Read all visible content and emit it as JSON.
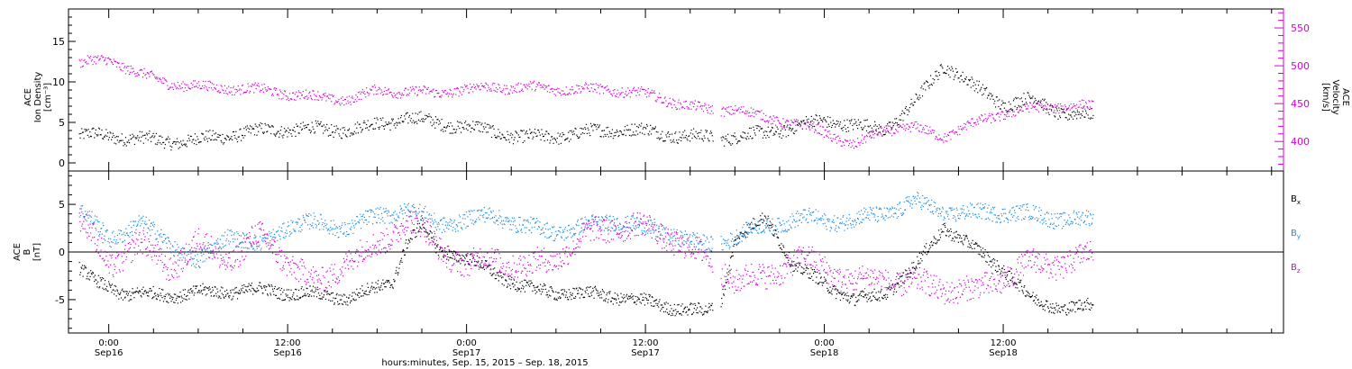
{
  "chart_data": [
    {
      "panel": "top",
      "type": "scatter",
      "x_unit": "hours since 2015-09-15 22:00",
      "ylabel_left": [
        "ACE",
        "Ion Density",
        "[cm⁻³]"
      ],
      "ylabel_right": [
        "ACE",
        "Velocity",
        "[km/s]"
      ],
      "ylim_left": [
        -1,
        19
      ],
      "yticks_left": [
        0,
        5,
        10,
        15
      ],
      "ylim_right": [
        361,
        575
      ],
      "yticks_right": [
        400,
        450,
        500,
        550
      ],
      "series": [
        {
          "name": "",
          "axis": "left",
          "color": "#000000",
          "trend": [
            [
              0,
              3.0
            ],
            [
              6,
              3.0
            ],
            [
              12,
              3.5
            ],
            [
              18,
              4.5
            ],
            [
              22,
              5.5
            ],
            [
              24,
              4.5
            ],
            [
              30,
              3.5
            ],
            [
              36,
              3.7
            ],
            [
              42,
              3.5
            ],
            [
              46,
              3.5
            ],
            [
              48,
              4.0
            ],
            [
              50,
              5.0
            ],
            [
              54,
              4.5
            ],
            [
              56,
              7.5
            ],
            [
              58,
              12.0
            ],
            [
              60,
              9.0
            ],
            [
              62,
              7.0
            ],
            [
              64,
              8.0
            ],
            [
              66,
              6.5
            ],
            [
              68,
              6.0
            ]
          ],
          "scatter_amp": 1.2,
          "gap": [
            42.5,
            43.0
          ]
        },
        {
          "name": "",
          "axis": "right",
          "color": "#d400d4",
          "trend": [
            [
              0,
              500
            ],
            [
              2,
              505
            ],
            [
              4,
              490
            ],
            [
              6,
              480
            ],
            [
              10,
              470
            ],
            [
              14,
              460
            ],
            [
              18,
              458
            ],
            [
              20,
              470
            ],
            [
              22,
              465
            ],
            [
              24,
              460
            ],
            [
              27,
              470
            ],
            [
              30,
              475
            ],
            [
              34,
              468
            ],
            [
              38,
              460
            ],
            [
              42,
              445
            ],
            [
              44,
              445
            ],
            [
              46,
              430
            ],
            [
              48,
              420
            ],
            [
              50,
              410
            ],
            [
              52,
              395
            ],
            [
              54,
              420
            ],
            [
              56,
              420
            ],
            [
              58,
              405
            ],
            [
              60,
              420
            ],
            [
              62,
              435
            ],
            [
              64,
              445
            ],
            [
              66,
              450
            ],
            [
              68,
              448
            ]
          ],
          "scatter_amp": 10,
          "gap": [
            42.5,
            43.0
          ]
        }
      ]
    },
    {
      "panel": "bottom",
      "type": "scatter",
      "x_unit": "hours since 2015-09-15 22:00",
      "ylabel_left": [
        "ACE",
        "B",
        "[nT]"
      ],
      "ylim": [
        -8.5,
        8.5
      ],
      "yticks": [
        -5,
        0,
        5
      ],
      "zero_line": true,
      "series": [
        {
          "name": "Bx",
          "color": "#000000",
          "trend": [
            [
              0,
              -2
            ],
            [
              1,
              -3.5
            ],
            [
              3,
              -4.5
            ],
            [
              8,
              -4.0
            ],
            [
              14,
              -4.5
            ],
            [
              18,
              -4.5
            ],
            [
              21,
              -3.0
            ],
            [
              22,
              1.0
            ],
            [
              23,
              2.5
            ],
            [
              24,
              0.0
            ],
            [
              26,
              -1.0
            ],
            [
              30,
              -3.5
            ],
            [
              34,
              -4.5
            ],
            [
              38,
              -5.5
            ],
            [
              42,
              -6.0
            ],
            [
              43,
              -5.0
            ],
            [
              44,
              1.5
            ],
            [
              46,
              3.5
            ],
            [
              47,
              1.0
            ],
            [
              48,
              -2.0
            ],
            [
              50,
              -3.5
            ],
            [
              52,
              -5.0
            ],
            [
              54,
              -4.0
            ],
            [
              56,
              -1.5
            ],
            [
              58,
              2.5
            ],
            [
              60,
              0.0
            ],
            [
              62,
              -2.0
            ],
            [
              64,
              -5.0
            ],
            [
              66,
              -5.5
            ],
            [
              68,
              -5.5
            ]
          ],
          "scatter_amp": 1.0,
          "gap": [
            42.5,
            43.0
          ]
        },
        {
          "name": "By",
          "color": "#1a8ae6",
          "trend": [
            [
              0,
              4.0
            ],
            [
              2,
              1.0
            ],
            [
              4,
              3.0
            ],
            [
              6,
              1.5
            ],
            [
              8,
              -1.0
            ],
            [
              10,
              2.0
            ],
            [
              12,
              0.0
            ],
            [
              14,
              2.5
            ],
            [
              16,
              3.0
            ],
            [
              18,
              3.0
            ],
            [
              20,
              4.0
            ],
            [
              22,
              4.5
            ],
            [
              24,
              2.5
            ],
            [
              26,
              3.0
            ],
            [
              28,
              4.0
            ],
            [
              30,
              3.0
            ],
            [
              32,
              2.5
            ],
            [
              34,
              2.5
            ],
            [
              36,
              3.0
            ],
            [
              38,
              2.0
            ],
            [
              40,
              2.0
            ],
            [
              42,
              1.0
            ],
            [
              44,
              2.0
            ],
            [
              46,
              2.5
            ],
            [
              48,
              3.0
            ],
            [
              50,
              3.0
            ],
            [
              52,
              3.5
            ],
            [
              54,
              4.5
            ],
            [
              56,
              5.5
            ],
            [
              58,
              4.0
            ],
            [
              60,
              3.5
            ],
            [
              62,
              4.0
            ],
            [
              64,
              4.0
            ],
            [
              66,
              4.0
            ],
            [
              68,
              3.5
            ]
          ],
          "scatter_amp": 1.3,
          "gap": [
            42.5,
            43.0
          ]
        },
        {
          "name": "Bz",
          "color": "#d400d4",
          "trend": [
            [
              0,
              3.0
            ],
            [
              2,
              -2.0
            ],
            [
              4,
              1.0
            ],
            [
              6,
              -1.0
            ],
            [
              8,
              1.5
            ],
            [
              10,
              -1.0
            ],
            [
              12,
              1.0
            ],
            [
              14,
              -1.5
            ],
            [
              16,
              -3.5
            ],
            [
              18,
              0.0
            ],
            [
              20,
              1.0
            ],
            [
              22,
              3.5
            ],
            [
              24,
              0.0
            ],
            [
              26,
              -2.0
            ],
            [
              28,
              -0.5
            ],
            [
              30,
              -1.0
            ],
            [
              32,
              0.0
            ],
            [
              34,
              1.5
            ],
            [
              36,
              2.0
            ],
            [
              38,
              2.0
            ],
            [
              40,
              1.5
            ],
            [
              42,
              0.0
            ],
            [
              43,
              -1.0
            ],
            [
              44,
              -2.5
            ],
            [
              46,
              -3.0
            ],
            [
              48,
              -1.5
            ],
            [
              50,
              -2.0
            ],
            [
              52,
              -3.0
            ],
            [
              54,
              -2.0
            ],
            [
              56,
              -3.0
            ],
            [
              58,
              -4.0
            ],
            [
              60,
              -5.0
            ],
            [
              62,
              -3.0
            ],
            [
              64,
              -1.0
            ],
            [
              66,
              -0.5
            ],
            [
              68,
              0.0
            ]
          ],
          "scatter_amp": 2.0,
          "gap": [
            42.5,
            43.0
          ]
        }
      ]
    }
  ],
  "time_axis": {
    "xlim": [
      -0.7,
      80.8
    ],
    "major_ticks": [
      {
        "t": 2,
        "label": "0:00",
        "date": "Sep16"
      },
      {
        "t": 14,
        "label": "12:00",
        "date": "Sep16"
      },
      {
        "t": 26,
        "label": "0:00",
        "date": "Sep17"
      },
      {
        "t": 38,
        "label": "12:00",
        "date": "Sep17"
      },
      {
        "t": 50,
        "label": "0:00",
        "date": "Sep18"
      },
      {
        "t": 62,
        "label": "12:00",
        "date": "Sep18"
      }
    ],
    "minor_step_hours": 3,
    "caption": "hours:minutes, Sep. 15, 2015 – Sep. 18, 2015"
  },
  "legend": {
    "bx": {
      "base": "B",
      "sub": "x",
      "color": "#000000"
    },
    "by": {
      "base": "B",
      "sub": "y",
      "color": "#1a8ae6"
    },
    "bz": {
      "base": "B",
      "sub": "z",
      "color": "#d400d4"
    }
  },
  "colors": {
    "axis": "#000000",
    "velocity_axis": "#d400d4",
    "density": "#000000",
    "velocity": "#d400d4",
    "bx": "#000000",
    "by": "#1a8ae6",
    "bz": "#d400d4"
  }
}
